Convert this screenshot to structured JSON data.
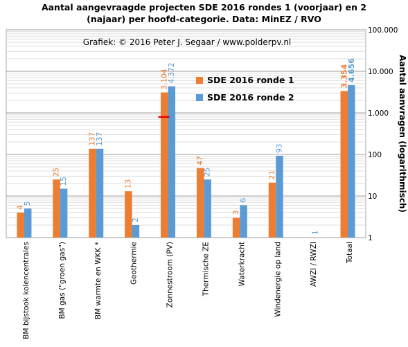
{
  "title_lines": [
    "Aantal aangevraagde projecten SDE 2016 rondes 1 (voorjaar) en 2",
    "(najaar) per hoofd-categorie. Data: MinEZ / RVO"
  ],
  "chart_data": {
    "type": "bar",
    "title": "Aantal aangevraagde projecten SDE 2016 rondes 1 (voorjaar) en 2 (najaar) per hoofd-categorie. Data: MinEZ / RVO",
    "credit": "Grafiek:  © 2016 Peter J. Segaar / www.polderpv.nl",
    "xlabel": "",
    "ylabel": "Aantal aanvragen (logarithmisch)",
    "yscale": "log",
    "ylim": [
      1,
      100000
    ],
    "yticks": [
      1,
      10,
      100,
      1000,
      10000,
      100000
    ],
    "ytick_labels": [
      "1",
      "10",
      "100",
      "1.000",
      "10.000",
      "100.000"
    ],
    "grid": true,
    "legend_position": "upper-right inside",
    "categories": [
      "BM bijstook kolencentrales",
      "BM gas (\"groen gas\")",
      "BM warmte en WKK *",
      "Geothermie",
      "Zonnestroom (PV)",
      "Thermische ZE",
      "Waterkracht",
      "Windenergie op land",
      "AWZI / RWZI",
      "Totaal"
    ],
    "series": [
      {
        "name": "SDE 2016 ronde 1",
        "color": "#ED7D31",
        "values": [
          4,
          25,
          137,
          13,
          3104,
          47,
          3,
          21,
          null,
          3354
        ],
        "labels": [
          "4",
          "25",
          "137",
          "13",
          "3.104",
          "47",
          "3",
          "21",
          "",
          "3.354"
        ]
      },
      {
        "name": "SDE 2016 ronde 2",
        "color": "#5B9BD5",
        "values": [
          5,
          15,
          137,
          2,
          4372,
          25,
          6,
          93,
          1,
          4656
        ],
        "labels": [
          "5",
          "15",
          "137",
          "2",
          "4.372",
          "25",
          "6",
          "93",
          "1",
          "4.656"
        ]
      }
    ],
    "annotations": [
      {
        "type": "marker-line",
        "category": "Zonnestroom (PV)",
        "value": 800,
        "color": "#E00000"
      }
    ]
  }
}
